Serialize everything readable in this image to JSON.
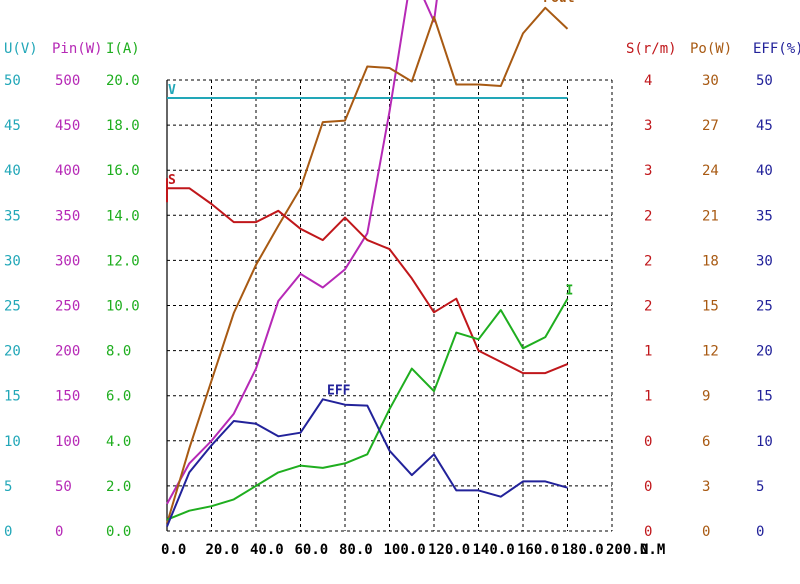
{
  "chart_data": {
    "type": "line",
    "xlabel": "N.M",
    "x_ticks": [
      "0.0",
      "20.0",
      "40.0",
      "60.0",
      "80.0",
      "100.0",
      "120.0",
      "140.0",
      "160.0",
      "180.0",
      "200.0"
    ],
    "xlim": [
      0,
      200
    ],
    "grid": true,
    "axes": [
      {
        "key": "U",
        "label": "U(V)",
        "color": "#22a7b8",
        "ticks": [
          "0",
          "5",
          "10",
          "15",
          "20",
          "25",
          "30",
          "35",
          "40",
          "45",
          "50"
        ],
        "ylim": [
          0,
          50
        ]
      },
      {
        "key": "Pin",
        "label": "Pin(W)",
        "color": "#b629b6",
        "ticks": [
          "0",
          "50",
          "100",
          "150",
          "200",
          "250",
          "300",
          "350",
          "400",
          "450",
          "500"
        ],
        "ylim": [
          0,
          500
        ]
      },
      {
        "key": "I",
        "label": "I(A)",
        "color": "#1fae1f",
        "ticks": [
          "0.0",
          "2.0",
          "4.0",
          "6.0",
          "8.0",
          "10.0",
          "12.0",
          "14.0",
          "16.0",
          "18.0",
          "20.0"
        ],
        "ylim": [
          0,
          20
        ]
      },
      {
        "key": "S",
        "label": "S(r/m)",
        "color": "#c0171b",
        "ticks": [
          "0",
          "0",
          "0",
          "1",
          "1",
          "2",
          "2",
          "2",
          "3",
          "3",
          "4"
        ],
        "ylim": [
          0,
          4
        ]
      },
      {
        "key": "Po",
        "label": "Po(W)",
        "color": "#a85a13",
        "ticks": [
          "0",
          "3",
          "6",
          "9",
          "12",
          "15",
          "18",
          "21",
          "24",
          "27",
          "30"
        ],
        "ylim": [
          0,
          30
        ]
      },
      {
        "key": "EFF",
        "label": "EFF(%)",
        "color": "#22229a",
        "ticks": [
          "0",
          "5",
          "10",
          "15",
          "20",
          "25",
          "30",
          "35",
          "40",
          "45",
          "50"
        ],
        "ylim": [
          0,
          50
        ]
      }
    ],
    "series": [
      {
        "name": "V",
        "axis": "U",
        "color": "#22a7b8",
        "x": [
          0,
          180
        ],
        "y": [
          48.0,
          48.0
        ]
      },
      {
        "name": "Pin",
        "axis": "Pin",
        "color": "#b629b6",
        "x": [
          0,
          10,
          20,
          30,
          40,
          50,
          60,
          70,
          80,
          90,
          100,
          110,
          120,
          130,
          140,
          150,
          160,
          170,
          180
        ],
        "y": [
          30,
          75,
          100,
          130,
          180,
          255,
          285,
          270,
          290,
          330,
          465,
          620,
          565,
          755,
          740,
          840,
          725,
          755,
          955
        ]
      },
      {
        "name": "Pout",
        "axis": "Po",
        "color": "#a85a13",
        "x": [
          0,
          10,
          20,
          30,
          40,
          50,
          60,
          70,
          80,
          90,
          100,
          110,
          120,
          130,
          140,
          150,
          160,
          170,
          180
        ],
        "y": [
          0.5,
          5.5,
          10.0,
          14.5,
          17.7,
          20.3,
          22.8,
          27.2,
          27.3,
          30.9,
          30.8,
          29.9,
          34.2,
          29.7,
          29.7,
          29.6,
          33.1,
          34.8,
          33.4
        ]
      },
      {
        "name": "S",
        "axis": "S",
        "color": "#c0171b",
        "x": [
          0,
          10,
          20,
          30,
          40,
          50,
          60,
          70,
          80,
          90,
          100,
          110,
          120,
          130,
          140,
          150,
          160,
          170,
          180
        ],
        "y": [
          3.04,
          3.04,
          2.9,
          2.74,
          2.74,
          2.84,
          2.68,
          2.58,
          2.78,
          2.58,
          2.5,
          2.24,
          1.94,
          2.06,
          1.6,
          1.5,
          1.4,
          1.4,
          1.48
        ]
      },
      {
        "name": "I",
        "axis": "I",
        "color": "#1fae1f",
        "x": [
          0,
          10,
          20,
          30,
          40,
          50,
          60,
          70,
          80,
          90,
          100,
          110,
          120,
          130,
          140,
          150,
          160,
          170,
          180
        ],
        "y": [
          0.5,
          0.9,
          1.1,
          1.4,
          2.0,
          2.6,
          2.9,
          2.8,
          3.0,
          3.4,
          5.4,
          7.2,
          6.2,
          8.8,
          8.5,
          9.8,
          8.1,
          8.6,
          10.3
        ]
      },
      {
        "name": "EFF",
        "axis": "EFF",
        "color": "#22229a",
        "x": [
          0,
          10,
          20,
          30,
          40,
          50,
          60,
          70,
          80,
          90,
          100,
          110,
          120,
          130,
          140,
          150,
          160,
          170,
          180
        ],
        "y": [
          0.5,
          6.5,
          9.5,
          12.2,
          11.9,
          10.5,
          10.9,
          14.6,
          14.0,
          13.9,
          8.9,
          6.2,
          8.5,
          4.5,
          4.5,
          3.8,
          5.5,
          5.5,
          4.8
        ]
      }
    ],
    "annotations": [
      {
        "text": "V",
        "series": "V",
        "at": "start",
        "color": "#22a7b8"
      },
      {
        "text": "Pin",
        "series": "Pin",
        "at": "end",
        "color": "#b629b6"
      },
      {
        "text": "Pout",
        "series": "Pout",
        "at": "peak",
        "color": "#a85a13"
      },
      {
        "text": "S",
        "series": "S",
        "at": "start",
        "color": "#c0171b"
      },
      {
        "text": "I",
        "series": "I",
        "at": "end",
        "color": "#1fae1f"
      },
      {
        "text": "EFF",
        "series": "EFF",
        "at": "x80",
        "color": "#22229a"
      }
    ]
  }
}
